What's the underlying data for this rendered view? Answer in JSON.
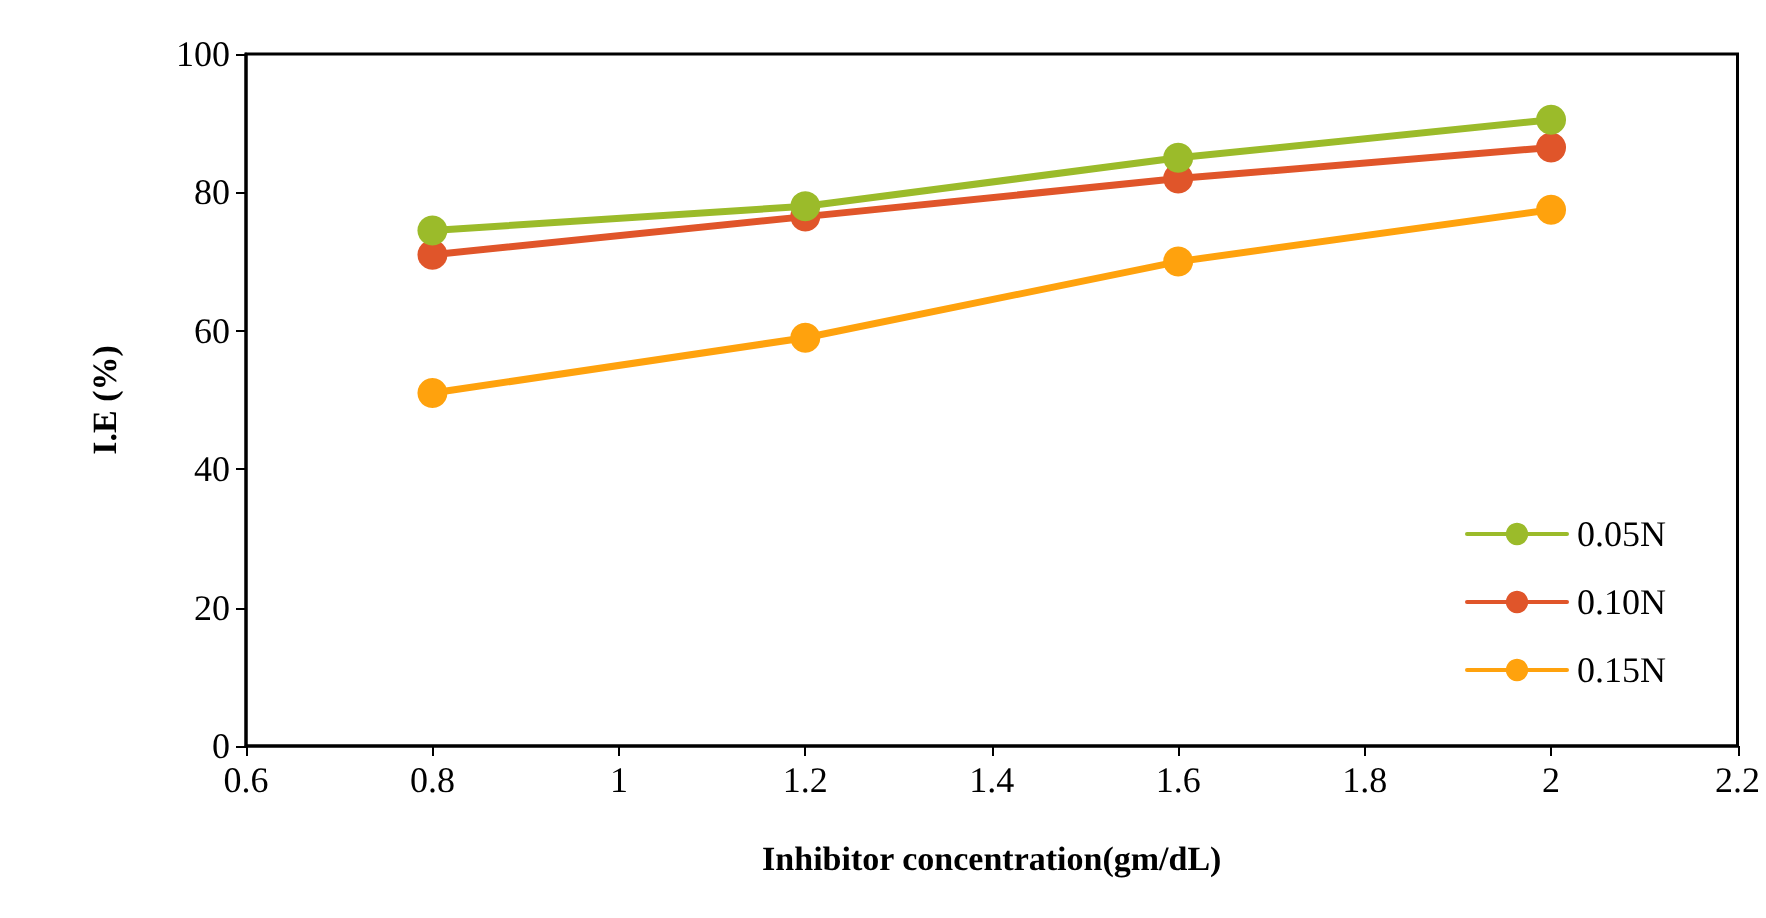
{
  "chart_data": {
    "type": "line",
    "xlabel": "Inhibitor concentration(gm/dL)",
    "ylabel": "I.E (%)",
    "x": [
      0.8,
      1.2,
      1.6,
      2
    ],
    "series": [
      {
        "name": "0.05N",
        "color": "#9bbb2a",
        "values": [
          74.5,
          78,
          85,
          90.5
        ]
      },
      {
        "name": "0.10N",
        "color": "#e0552a",
        "values": [
          71,
          76.5,
          82,
          86.5
        ]
      },
      {
        "name": "0.15N",
        "color": "#ffa20d",
        "values": [
          51,
          59,
          70,
          77.5
        ]
      }
    ],
    "xlim": [
      0.6,
      2.2
    ],
    "xticks": [
      0.6,
      0.8,
      1,
      1.2,
      1.4,
      1.6,
      1.8,
      2,
      2.2
    ],
    "ylim": [
      0,
      100
    ],
    "yticks": [
      0,
      20,
      40,
      60,
      80,
      100
    ],
    "grid": false,
    "legend": "bottom right",
    "marker": "circle",
    "line_style": "solid"
  }
}
